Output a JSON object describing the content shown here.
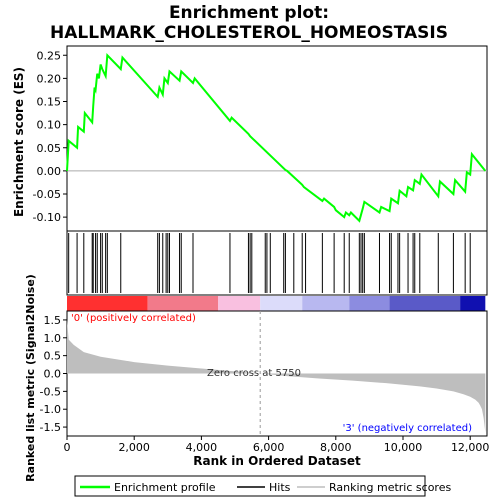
{
  "chart_data": {
    "type": "line",
    "title_line1": "Enrichment plot:",
    "title_line2": "HALLMARK_CHOLESTEROL_HOMEOSTASIS",
    "colors": {
      "profile": "#00ff00",
      "zero_line": "#aaaaaa",
      "metric_fill": "#bebebe",
      "positive_label": "#ff0000",
      "negative_label": "#0000ff",
      "hits": "#000000"
    },
    "x_axis": {
      "label": "Rank in Ordered Dataset",
      "range": [
        0,
        12500
      ],
      "ticks": [
        {
          "value": 0,
          "label": "0"
        },
        {
          "value": 2000,
          "label": "2,000"
        },
        {
          "value": 4000,
          "label": "4,000"
        },
        {
          "value": 6000,
          "label": "6,000"
        },
        {
          "value": 8000,
          "label": "8,000"
        },
        {
          "value": 10000,
          "label": "10,000"
        },
        {
          "value": 12000,
          "label": "12,000"
        }
      ]
    },
    "es_axis": {
      "label": "Enrichment score (ES)",
      "range": [
        -0.13,
        0.27
      ],
      "ticks": [
        {
          "value": 0.25,
          "label": "0.25"
        },
        {
          "value": 0.2,
          "label": "0.20"
        },
        {
          "value": 0.15,
          "label": "0.15"
        },
        {
          "value": 0.1,
          "label": "0.10"
        },
        {
          "value": 0.05,
          "label": "0.05"
        },
        {
          "value": 0.0,
          "label": "0.00"
        },
        {
          "value": -0.05,
          "label": "-0.05"
        },
        {
          "value": -0.1,
          "label": "-0.10"
        }
      ]
    },
    "metric_axis": {
      "label": "Ranked list metric (Signal2Noise)",
      "range": [
        -1.75,
        1.75
      ],
      "ticks": [
        {
          "value": 1.5,
          "label": "1.5"
        },
        {
          "value": 1.0,
          "label": "1.0"
        },
        {
          "value": 0.5,
          "label": "0.5"
        },
        {
          "value": 0.0,
          "label": "0.0"
        },
        {
          "value": -0.5,
          "label": "-0.5"
        },
        {
          "value": -1.0,
          "label": "-1.0"
        },
        {
          "value": -1.5,
          "label": "-1.5"
        }
      ]
    },
    "enrichment_profile": {
      "name": "Enrichment profile",
      "x": [
        0,
        50,
        300,
        330,
        500,
        530,
        750,
        780,
        820,
        850,
        900,
        950,
        1000,
        1050,
        1150,
        1200,
        1600,
        1650,
        2700,
        2750,
        2850,
        2900,
        3000,
        3050,
        3350,
        3400,
        3750,
        3800,
        4850,
        4900,
        5400,
        5450,
        6500,
        6550,
        7000,
        7050,
        7600,
        7650,
        7950,
        8000,
        8250,
        8300,
        8400,
        8450,
        8700,
        8750,
        8800,
        8850,
        9300,
        9350,
        9600,
        9650,
        9850,
        9900,
        10100,
        10150,
        10300,
        10350,
        10500,
        10550,
        11050,
        11100,
        11500,
        11550,
        11850,
        11900,
        12000,
        12050,
        12450
      ],
      "y": [
        0.0,
        0.065,
        0.05,
        0.095,
        0.085,
        0.125,
        0.105,
        0.14,
        0.18,
        0.175,
        0.21,
        0.2,
        0.23,
        0.22,
        0.205,
        0.25,
        0.22,
        0.245,
        0.16,
        0.18,
        0.165,
        0.2,
        0.19,
        0.215,
        0.195,
        0.215,
        0.19,
        0.2,
        0.108,
        0.115,
        0.08,
        0.075,
        0.002,
        0.0,
        -0.03,
        -0.035,
        -0.065,
        -0.06,
        -0.078,
        -0.085,
        -0.1,
        -0.09,
        -0.096,
        -0.09,
        -0.108,
        -0.095,
        -0.082,
        -0.067,
        -0.09,
        -0.078,
        -0.087,
        -0.06,
        -0.07,
        -0.043,
        -0.055,
        -0.035,
        -0.042,
        -0.02,
        -0.028,
        -0.008,
        -0.055,
        -0.023,
        -0.05,
        -0.02,
        -0.045,
        -0.003,
        -0.008,
        0.036,
        0.0
      ]
    },
    "hits": {
      "name": "Hits",
      "ranks": [
        50,
        300,
        500,
        750,
        780,
        850,
        900,
        1000,
        1050,
        1150,
        1200,
        1600,
        2700,
        2750,
        2850,
        2950,
        3000,
        3050,
        3350,
        3400,
        3750,
        4850,
        5400,
        5450,
        5500,
        5900,
        5950,
        6050,
        6450,
        6500,
        6750,
        7000,
        7100,
        7600,
        7950,
        8250,
        8400,
        8700,
        8750,
        8800,
        8850,
        9300,
        9600,
        9650,
        9850,
        9900,
        10150,
        10300,
        10350,
        10500,
        11050,
        11500,
        11850,
        12000
      ]
    },
    "ranked_metric": {
      "name": "Ranking metric scores",
      "x": [
        0,
        50,
        200,
        500,
        1000,
        2000,
        3000,
        4000,
        5000,
        5750,
        6500,
        7500,
        8500,
        9500,
        10500,
        11000,
        11500,
        11800,
        12000,
        12150,
        12250,
        12300,
        12350,
        12400,
        12450
      ],
      "y": [
        1.5,
        0.95,
        0.8,
        0.6,
        0.47,
        0.32,
        0.22,
        0.14,
        0.06,
        0.0,
        -0.07,
        -0.14,
        -0.2,
        -0.27,
        -0.36,
        -0.42,
        -0.5,
        -0.58,
        -0.65,
        -0.73,
        -0.82,
        -0.9,
        -1.0,
        -1.25,
        -1.65
      ]
    },
    "ranking_colorbar": {
      "ranges": [
        {
          "to": 2400,
          "color": "#ff3030"
        },
        {
          "to": 4500,
          "color": "#f27a8a"
        },
        {
          "to": 5750,
          "color": "#f9c0e0"
        },
        {
          "to": 7000,
          "color": "#dcdcfa"
        },
        {
          "to": 8400,
          "color": "#b8b8f0"
        },
        {
          "to": 9600,
          "color": "#8c8ce0"
        },
        {
          "to": 11700,
          "color": "#5a5ac8"
        },
        {
          "to": 12450,
          "color": "#1010b0"
        }
      ]
    },
    "annotations": {
      "positive": "'0' (positively correlated)",
      "negative": "'3' (negatively correlated)",
      "zero_cross_text": "Zero cross at 5750",
      "zero_cross_value": 5750
    },
    "legend": {
      "placement": "bottom",
      "items": [
        "Enrichment profile",
        "Hits",
        "Ranking metric scores"
      ]
    }
  }
}
